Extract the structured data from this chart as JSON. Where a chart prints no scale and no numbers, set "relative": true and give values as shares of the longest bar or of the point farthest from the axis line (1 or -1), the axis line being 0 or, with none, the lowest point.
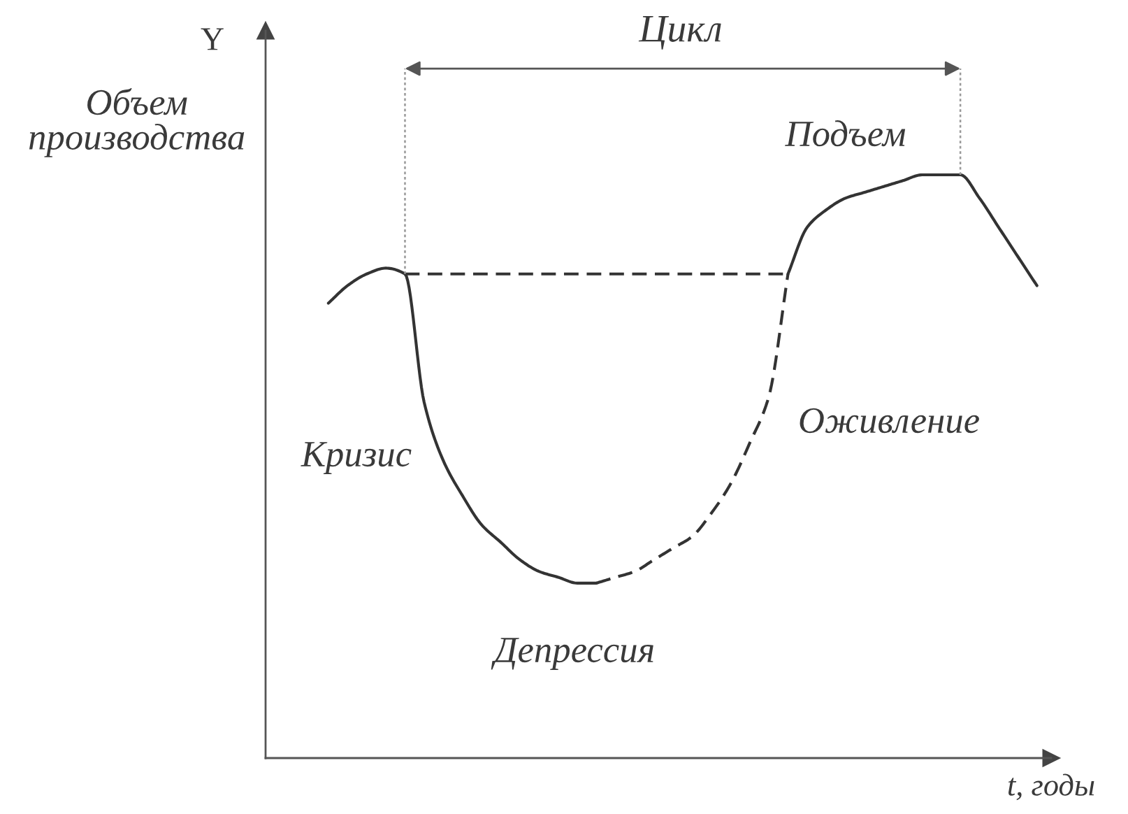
{
  "chart_data": {
    "type": "line",
    "relative": true,
    "xlabel": "t, годы",
    "ylabel": "Объем\nпроизводства",
    "annotations": [
      "Y",
      "Цикл",
      "Подъем",
      "Оживление",
      "Кризис",
      "Депрессия"
    ],
    "categories": [
      null,
      null,
      null,
      null,
      null,
      null,
      null,
      null,
      null,
      null,
      null,
      null,
      null,
      null,
      null,
      null,
      null,
      null,
      null,
      null,
      null,
      null,
      null,
      null,
      null,
      null,
      null,
      null,
      null,
      null,
      null,
      null,
      null,
      null,
      null,
      null,
      null,
      null
    ],
    "series": [
      {
        "color": "#333333",
        "line_style": "solid",
        "values": [
          0.78,
          0.81,
          0.83,
          0.84,
          0.83,
          0.61,
          0.51,
          0.45,
          0.4,
          0.37,
          0.34,
          0.32,
          0.31,
          0.3,
          0.3,
          null,
          null,
          null,
          null,
          null,
          null,
          null,
          null,
          null,
          null,
          null,
          null,
          null,
          null,
          null,
          null,
          null,
          null,
          null,
          null,
          null,
          null,
          null
        ]
      },
      {
        "color": "#333333",
        "line_style": "dashed",
        "values": [
          null,
          null,
          null,
          null,
          null,
          null,
          null,
          null,
          null,
          null,
          null,
          null,
          null,
          null,
          0.3,
          0.31,
          0.32,
          0.34,
          0.36,
          0.38,
          0.42,
          0.47,
          0.54,
          0.62,
          0.83,
          null,
          null,
          null,
          null,
          null,
          null,
          null,
          null,
          null,
          null,
          null,
          null,
          null
        ]
      },
      {
        "color": "#333333",
        "line_style": "solid",
        "values": [
          null,
          null,
          null,
          null,
          null,
          null,
          null,
          null,
          null,
          null,
          null,
          null,
          null,
          null,
          null,
          null,
          null,
          null,
          null,
          null,
          null,
          null,
          null,
          null,
          0.83,
          0.91,
          0.94,
          0.96,
          0.97,
          0.98,
          0.99,
          1,
          1,
          1,
          0.96,
          0.91,
          0.86,
          0.81
        ]
      },
      {
        "color": "#333333",
        "line_style": "dashed",
        "values": [
          null,
          null,
          null,
          null,
          0.83,
          0.83,
          0.83,
          0.83,
          0.83,
          0.83,
          0.83,
          0.83,
          0.83,
          0.83,
          0.83,
          0.83,
          0.83,
          0.83,
          0.83,
          0.83,
          0.83,
          0.83,
          0.83,
          0.83,
          0.83,
          null,
          null,
          null,
          null,
          null,
          null,
          null,
          null,
          null,
          null,
          null,
          null,
          null
        ]
      }
    ]
  }
}
